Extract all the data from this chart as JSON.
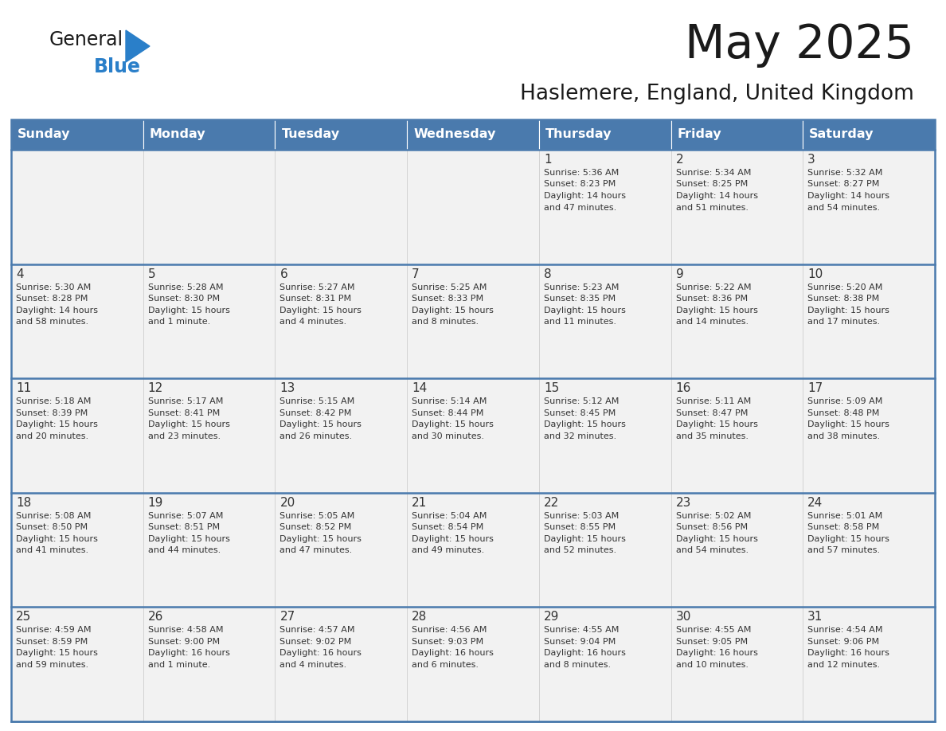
{
  "title": "May 2025",
  "subtitle": "Haslemere, England, United Kingdom",
  "days_of_week": [
    "Sunday",
    "Monday",
    "Tuesday",
    "Wednesday",
    "Thursday",
    "Friday",
    "Saturday"
  ],
  "header_bg": "#4a7aad",
  "header_text": "#ffffff",
  "cell_bg": "#f2f2f2",
  "cell_text": "#333333",
  "border_color": "#4a7aad",
  "title_color": "#1a1a1a",
  "subtitle_color": "#1a1a1a",
  "logo_general_color": "#1a1a1a",
  "logo_blue_color": "#2a7fc9",
  "logo_triangle_color": "#2a7fc9",
  "calendar": [
    [
      {
        "day": "",
        "sunrise": "",
        "sunset": "",
        "daylight": ""
      },
      {
        "day": "",
        "sunrise": "",
        "sunset": "",
        "daylight": ""
      },
      {
        "day": "",
        "sunrise": "",
        "sunset": "",
        "daylight": ""
      },
      {
        "day": "",
        "sunrise": "",
        "sunset": "",
        "daylight": ""
      },
      {
        "day": "1",
        "sunrise": "5:36 AM",
        "sunset": "8:23 PM",
        "daylight": "14 hours and 47 minutes."
      },
      {
        "day": "2",
        "sunrise": "5:34 AM",
        "sunset": "8:25 PM",
        "daylight": "14 hours and 51 minutes."
      },
      {
        "day": "3",
        "sunrise": "5:32 AM",
        "sunset": "8:27 PM",
        "daylight": "14 hours and 54 minutes."
      }
    ],
    [
      {
        "day": "4",
        "sunrise": "5:30 AM",
        "sunset": "8:28 PM",
        "daylight": "14 hours and 58 minutes."
      },
      {
        "day": "5",
        "sunrise": "5:28 AM",
        "sunset": "8:30 PM",
        "daylight": "15 hours and 1 minute."
      },
      {
        "day": "6",
        "sunrise": "5:27 AM",
        "sunset": "8:31 PM",
        "daylight": "15 hours and 4 minutes."
      },
      {
        "day": "7",
        "sunrise": "5:25 AM",
        "sunset": "8:33 PM",
        "daylight": "15 hours and 8 minutes."
      },
      {
        "day": "8",
        "sunrise": "5:23 AM",
        "sunset": "8:35 PM",
        "daylight": "15 hours and 11 minutes."
      },
      {
        "day": "9",
        "sunrise": "5:22 AM",
        "sunset": "8:36 PM",
        "daylight": "15 hours and 14 minutes."
      },
      {
        "day": "10",
        "sunrise": "5:20 AM",
        "sunset": "8:38 PM",
        "daylight": "15 hours and 17 minutes."
      }
    ],
    [
      {
        "day": "11",
        "sunrise": "5:18 AM",
        "sunset": "8:39 PM",
        "daylight": "15 hours and 20 minutes."
      },
      {
        "day": "12",
        "sunrise": "5:17 AM",
        "sunset": "8:41 PM",
        "daylight": "15 hours and 23 minutes."
      },
      {
        "day": "13",
        "sunrise": "5:15 AM",
        "sunset": "8:42 PM",
        "daylight": "15 hours and 26 minutes."
      },
      {
        "day": "14",
        "sunrise": "5:14 AM",
        "sunset": "8:44 PM",
        "daylight": "15 hours and 30 minutes."
      },
      {
        "day": "15",
        "sunrise": "5:12 AM",
        "sunset": "8:45 PM",
        "daylight": "15 hours and 32 minutes."
      },
      {
        "day": "16",
        "sunrise": "5:11 AM",
        "sunset": "8:47 PM",
        "daylight": "15 hours and 35 minutes."
      },
      {
        "day": "17",
        "sunrise": "5:09 AM",
        "sunset": "8:48 PM",
        "daylight": "15 hours and 38 minutes."
      }
    ],
    [
      {
        "day": "18",
        "sunrise": "5:08 AM",
        "sunset": "8:50 PM",
        "daylight": "15 hours and 41 minutes."
      },
      {
        "day": "19",
        "sunrise": "5:07 AM",
        "sunset": "8:51 PM",
        "daylight": "15 hours and 44 minutes."
      },
      {
        "day": "20",
        "sunrise": "5:05 AM",
        "sunset": "8:52 PM",
        "daylight": "15 hours and 47 minutes."
      },
      {
        "day": "21",
        "sunrise": "5:04 AM",
        "sunset": "8:54 PM",
        "daylight": "15 hours and 49 minutes."
      },
      {
        "day": "22",
        "sunrise": "5:03 AM",
        "sunset": "8:55 PM",
        "daylight": "15 hours and 52 minutes."
      },
      {
        "day": "23",
        "sunrise": "5:02 AM",
        "sunset": "8:56 PM",
        "daylight": "15 hours and 54 minutes."
      },
      {
        "day": "24",
        "sunrise": "5:01 AM",
        "sunset": "8:58 PM",
        "daylight": "15 hours and 57 minutes."
      }
    ],
    [
      {
        "day": "25",
        "sunrise": "4:59 AM",
        "sunset": "8:59 PM",
        "daylight": "15 hours and 59 minutes."
      },
      {
        "day": "26",
        "sunrise": "4:58 AM",
        "sunset": "9:00 PM",
        "daylight": "16 hours and 1 minute."
      },
      {
        "day": "27",
        "sunrise": "4:57 AM",
        "sunset": "9:02 PM",
        "daylight": "16 hours and 4 minutes."
      },
      {
        "day": "28",
        "sunrise": "4:56 AM",
        "sunset": "9:03 PM",
        "daylight": "16 hours and 6 minutes."
      },
      {
        "day": "29",
        "sunrise": "4:55 AM",
        "sunset": "9:04 PM",
        "daylight": "16 hours and 8 minutes."
      },
      {
        "day": "30",
        "sunrise": "4:55 AM",
        "sunset": "9:05 PM",
        "daylight": "16 hours and 10 minutes."
      },
      {
        "day": "31",
        "sunrise": "4:54 AM",
        "sunset": "9:06 PM",
        "daylight": "16 hours and 12 minutes."
      }
    ]
  ]
}
